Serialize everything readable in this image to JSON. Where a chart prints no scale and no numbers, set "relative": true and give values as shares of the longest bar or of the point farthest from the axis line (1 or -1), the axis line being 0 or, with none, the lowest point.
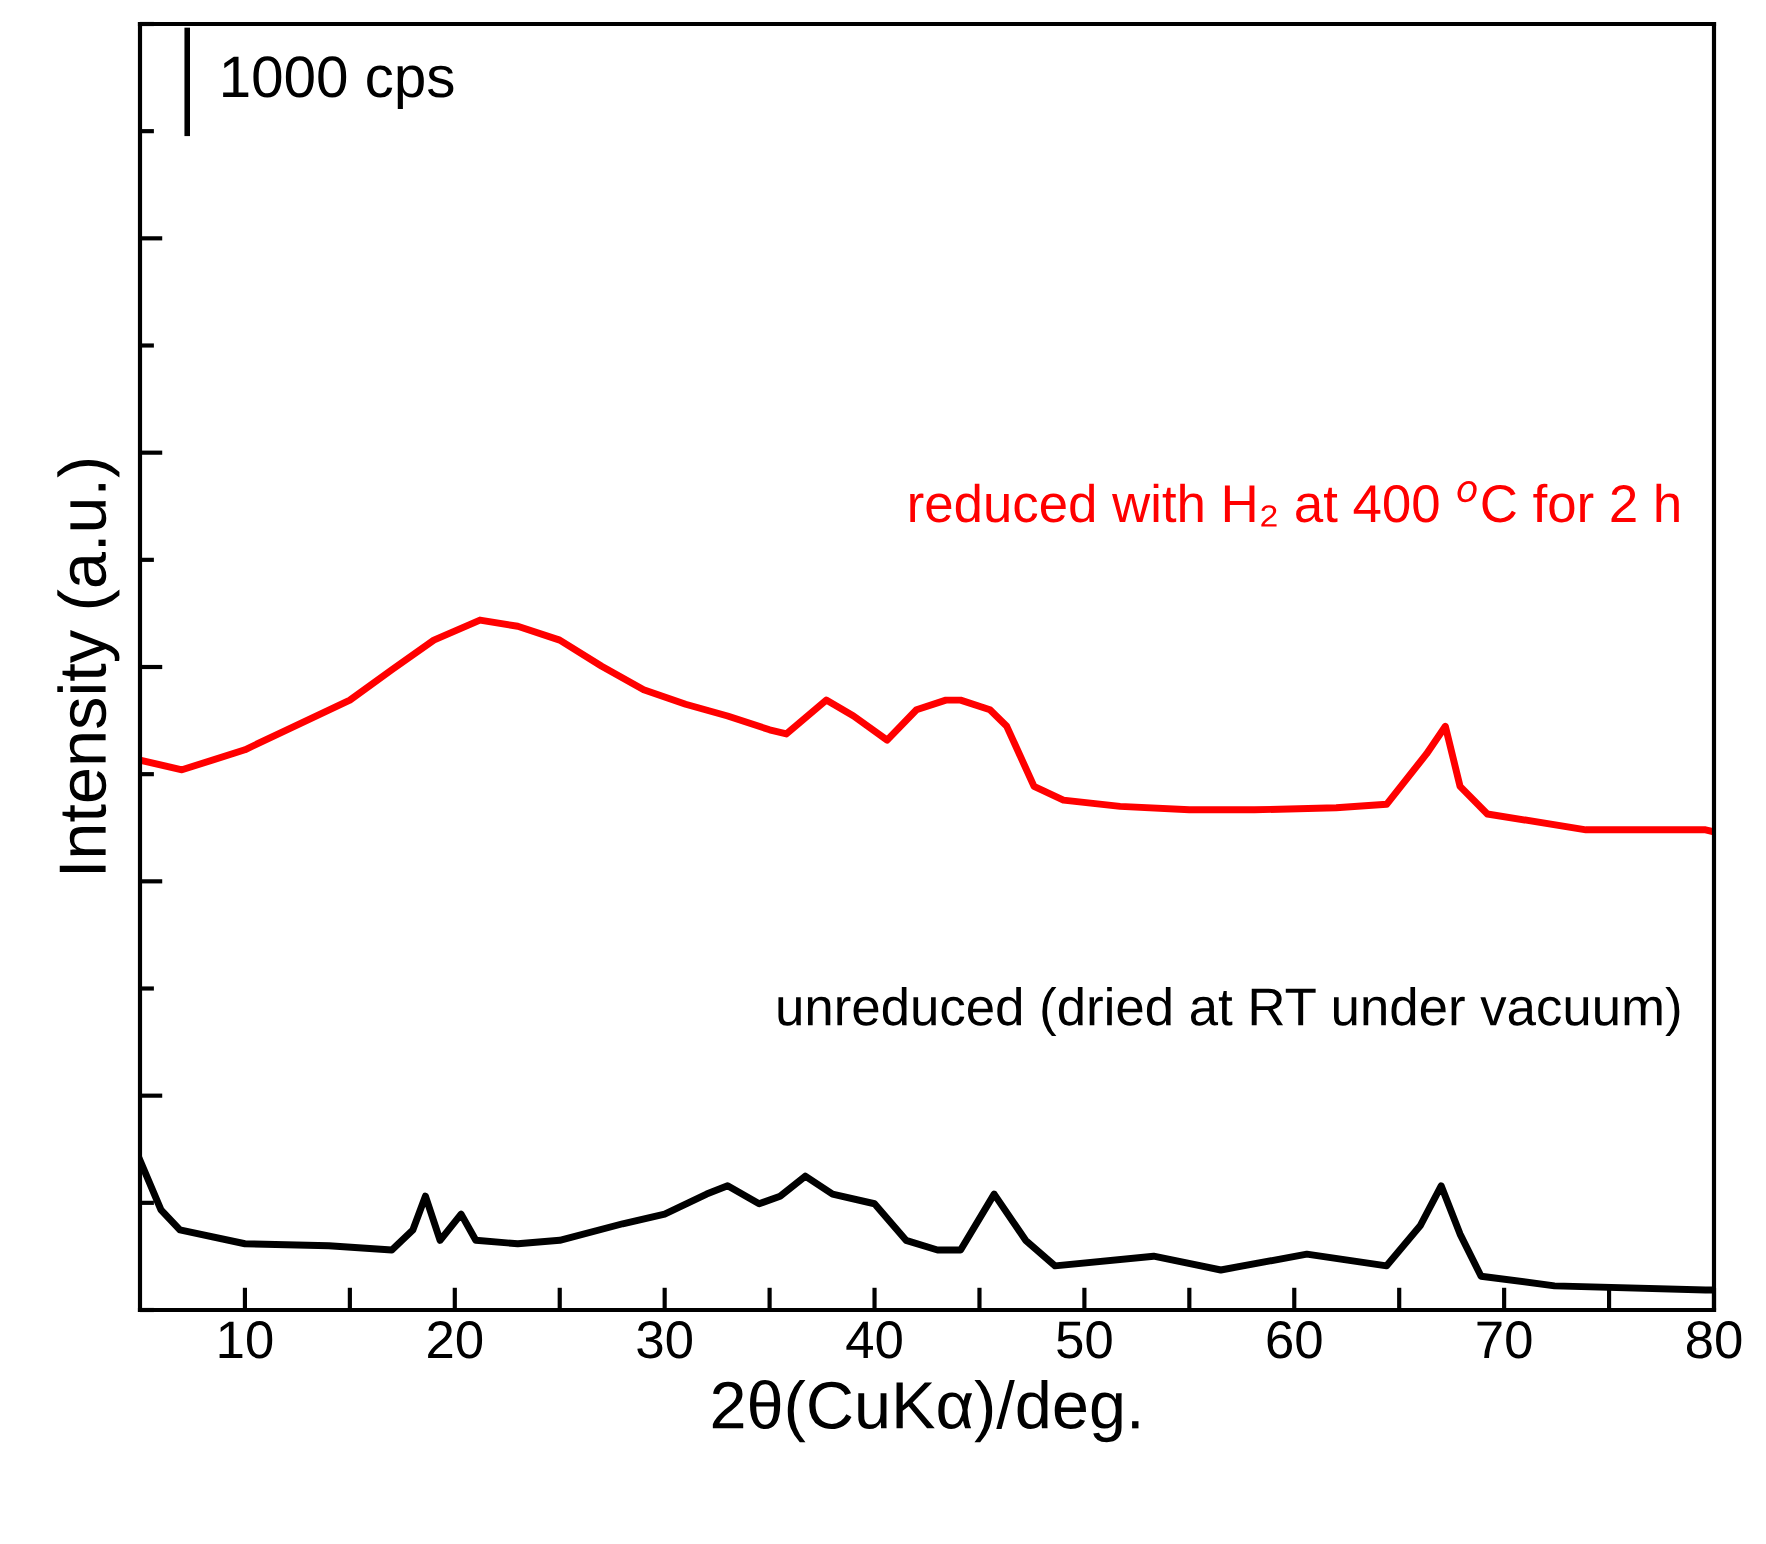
{
  "chart_data": {
    "type": "line",
    "relative": true,
    "xlabel": "2θ(CuKα)/deg.",
    "ylabel": "Intensity (a.u.)",
    "xlim": [
      5,
      80
    ],
    "xticks": [
      10,
      {
        "value": 15,
        "label": null
      },
      20,
      {
        "value": 25,
        "label": null
      },
      30,
      {
        "value": 35,
        "label": null
      },
      40,
      {
        "value": 45,
        "label": null
      },
      50,
      {
        "value": 55,
        "label": null
      },
      60,
      {
        "value": 65,
        "label": null
      },
      70,
      {
        "value": 75,
        "label": null
      },
      80
    ],
    "tick_labels": "x",
    "grid": false,
    "legend": false,
    "marker": "none",
    "line_style": "solid",
    "annotations": [
      "1000 cps"
    ],
    "series": [
      {
        "name": "unreduced (dried at RT under vacuum)",
        "color": "#000000",
        "x": [
          5,
          6,
          6.9,
          10,
          14,
          17,
          18,
          18.6,
          19.3,
          20.3,
          21,
          23,
          25,
          28,
          30,
          32,
          33,
          34.5,
          35.5,
          36.7,
          38,
          40,
          41.5,
          43,
          44.1,
          45.7,
          47.2,
          48.6,
          53.3,
          56.5,
          60.6,
          64.4,
          66,
          67,
          67.9,
          68.9,
          72.4,
          79.6,
          80
        ],
        "values": [
          0.217,
          0.145,
          0.116,
          0.096,
          0.093,
          0.087,
          0.116,
          0.165,
          0.101,
          0.139,
          0.101,
          0.096,
          0.101,
          0.125,
          0.139,
          0.168,
          0.18,
          0.154,
          0.165,
          0.194,
          0.168,
          0.154,
          0.101,
          0.087,
          0.087,
          0.168,
          0.101,
          0.064,
          0.078,
          0.058,
          0.081,
          0.064,
          0.122,
          0.18,
          0.11,
          0.049,
          0.035,
          0.029,
          0.029
        ]
      },
      {
        "name": "reduced with H₂ at 400 $^{o}$C for 2 h",
        "color": "#ff0000",
        "x": [
          5,
          7,
          10,
          12,
          15,
          17,
          19,
          21.2,
          23,
          25,
          27,
          29,
          31,
          33,
          35,
          35.8,
          37.7,
          39,
          40.6,
          42,
          43.4,
          44.1,
          45.5,
          46.3,
          47.6,
          49,
          51.7,
          55,
          58.1,
          62,
          64.4,
          66.3,
          67.2,
          67.9,
          69.2,
          73.9,
          79.6,
          80
        ],
        "values": [
          0.797,
          0.783,
          0.812,
          0.841,
          0.884,
          0.928,
          0.971,
          1.0,
          0.991,
          0.971,
          0.933,
          0.899,
          0.878,
          0.861,
          0.841,
          0.835,
          0.884,
          0.861,
          0.826,
          0.87,
          0.884,
          0.884,
          0.87,
          0.846,
          0.759,
          0.739,
          0.73,
          0.725,
          0.725,
          0.728,
          0.733,
          0.806,
          0.846,
          0.759,
          0.719,
          0.696,
          0.696,
          0.693
        ]
      }
    ]
  }
}
